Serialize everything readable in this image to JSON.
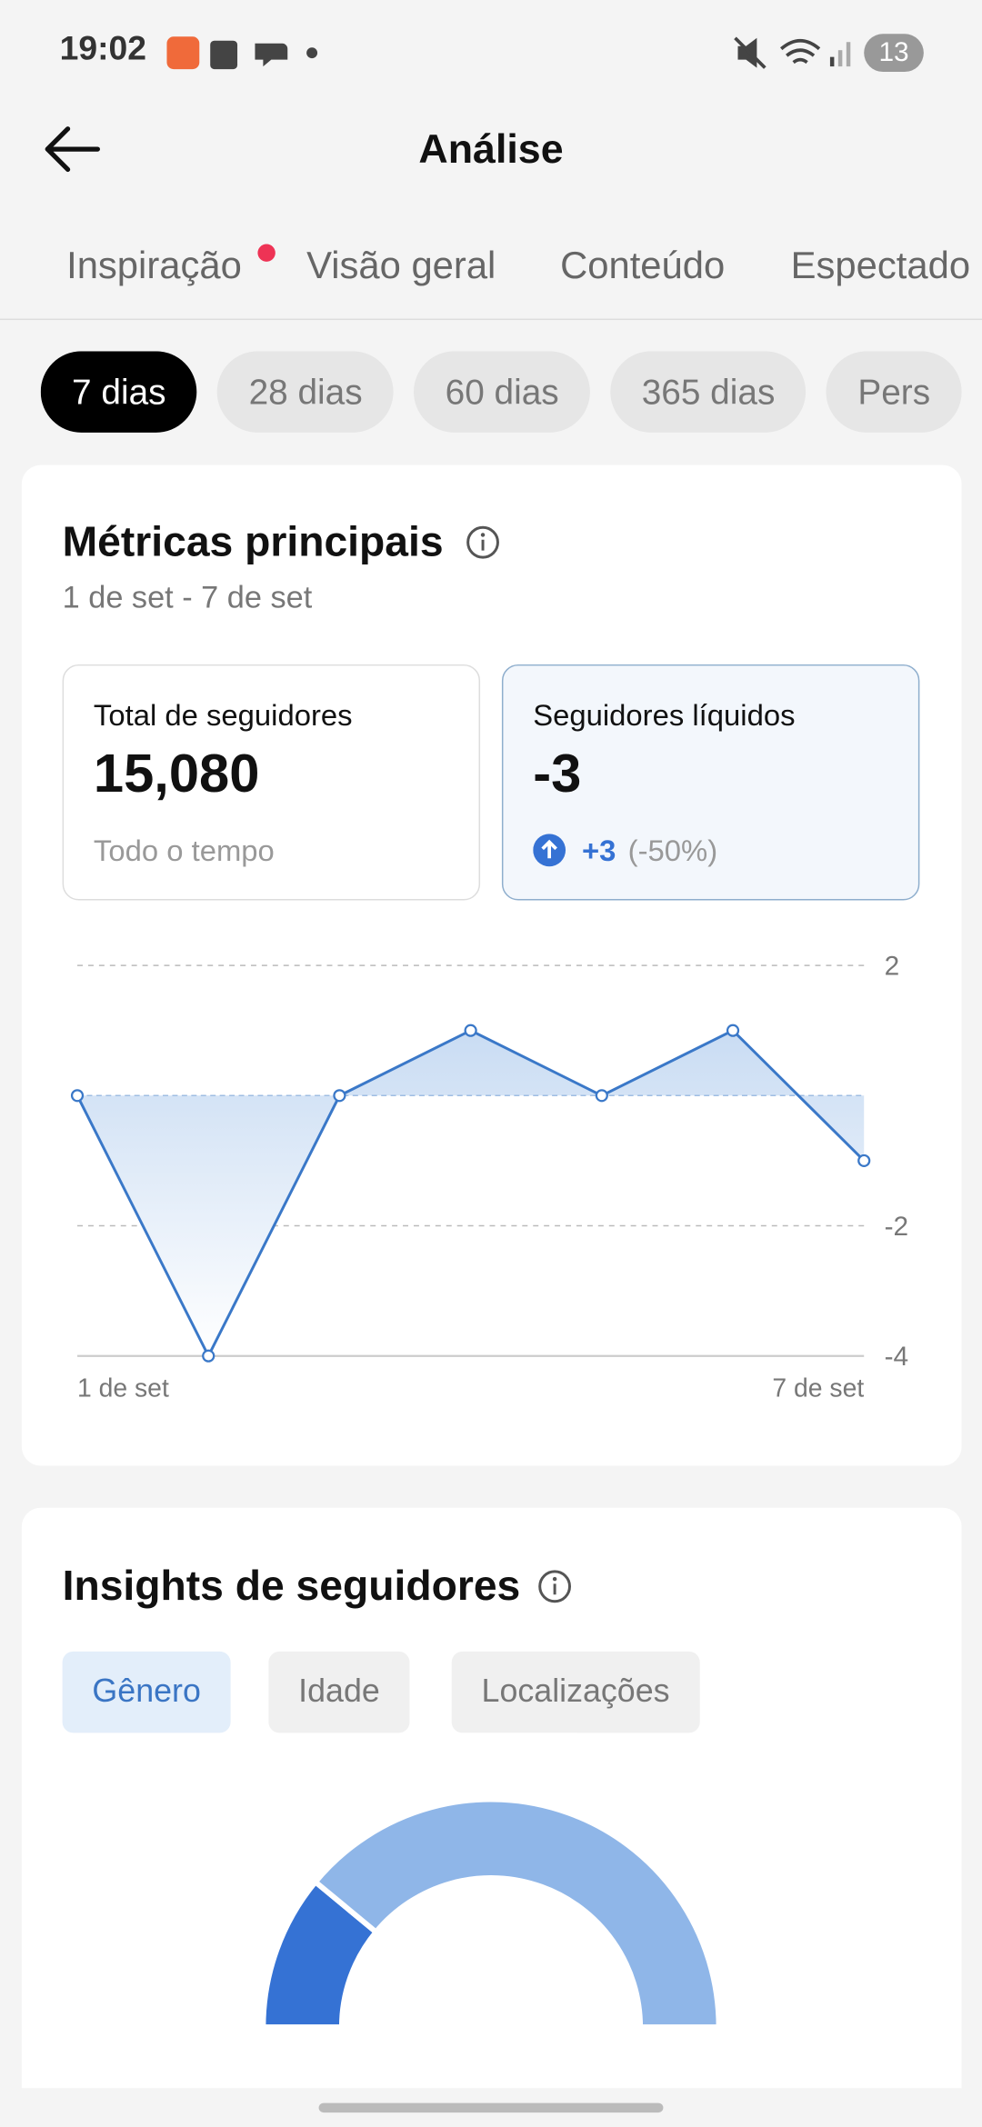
{
  "status_bar": {
    "time": "19:02",
    "notifications": "13"
  },
  "header": {
    "title": "Análise"
  },
  "tabs": [
    "Inspiração",
    "Visão geral",
    "Conteúdo",
    "Espectado"
  ],
  "filters": [
    "7 dias",
    "28 dias",
    "60 dias",
    "365 dias",
    "Pers"
  ],
  "metrics": {
    "title": "Métricas principais",
    "date_range": "1 de set - 7 de set",
    "cards": [
      {
        "label": "Total de seguidores",
        "value": "15,080",
        "note": "Todo o tempo"
      },
      {
        "label": "Seguidores líquidos",
        "value": "-3",
        "change": "+3",
        "change_pct": "(-50%)"
      }
    ]
  },
  "insights": {
    "title": "Insights de seguidores",
    "tabs": [
      "Gênero",
      "Idade",
      "Localizações"
    ]
  },
  "chart_data": [
    {
      "type": "line",
      "categories": [
        "1 de set",
        null,
        null,
        null,
        null,
        null,
        "7 de set"
      ],
      "values": [
        0,
        -4,
        0,
        1,
        0,
        1,
        -1
      ],
      "color": "#3a78c8",
      "ylim": [
        -4,
        2
      ],
      "yticks": [
        2,
        -2,
        -4
      ]
    },
    {
      "type": "donut",
      "values": [
        22,
        78
      ],
      "colors": [
        "#3572d4",
        "#8fb6e8"
      ]
    }
  ]
}
